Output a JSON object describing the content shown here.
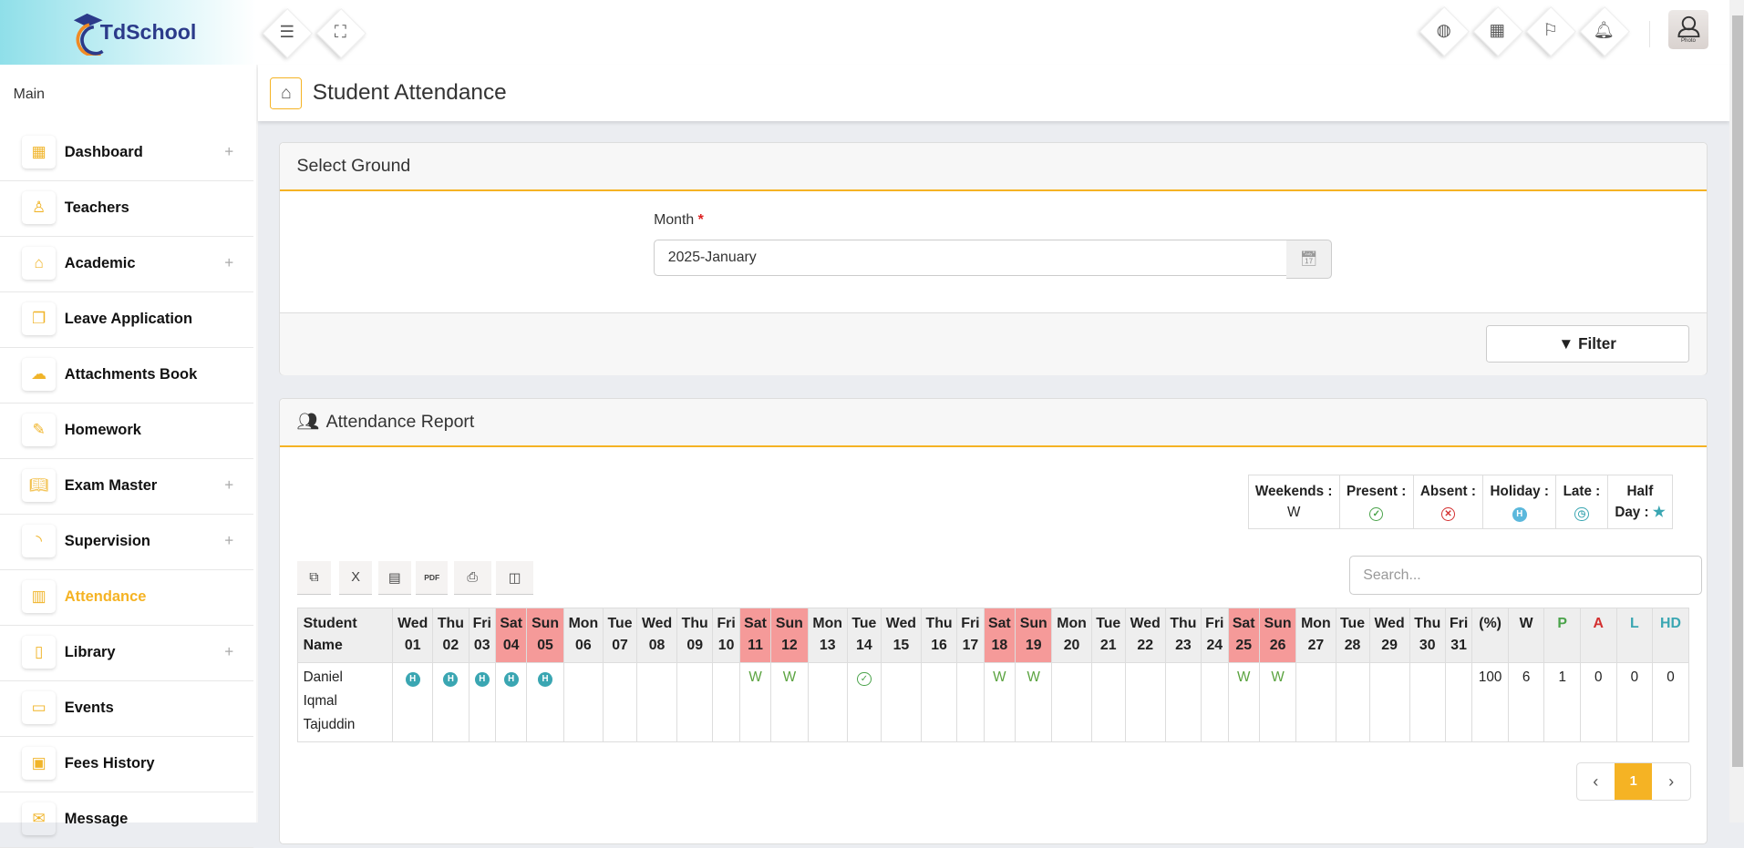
{
  "brand": {
    "name": "TdSchool"
  },
  "topbar": {
    "menu_icon": "menu-icon",
    "fullscreen_icon": "fullscreen-icon",
    "right_icons": [
      "globe-icon",
      "calendar-icon",
      "flag-icon",
      "bell-icon"
    ],
    "avatar_label": "Photo"
  },
  "sidebar": {
    "section": "Main",
    "items": [
      {
        "label": "Dashboard",
        "icon": "grid-icon",
        "expandable": true
      },
      {
        "label": "Teachers",
        "icon": "user-icon",
        "expandable": false
      },
      {
        "label": "Academic",
        "icon": "home-icon",
        "expandable": true
      },
      {
        "label": "Leave Application",
        "icon": "copy-icon",
        "expandable": false
      },
      {
        "label": "Attachments Book",
        "icon": "cloud-upload-icon",
        "expandable": false
      },
      {
        "label": "Homework",
        "icon": "edit-icon",
        "expandable": false
      },
      {
        "label": "Exam Master",
        "icon": "book-icon",
        "expandable": true
      },
      {
        "label": "Supervision",
        "icon": "rss-icon",
        "expandable": true
      },
      {
        "label": "Attendance",
        "icon": "bar-chart-icon",
        "expandable": false,
        "active": true
      },
      {
        "label": "Library",
        "icon": "book-closed-icon",
        "expandable": true
      },
      {
        "label": "Events",
        "icon": "chat-icon",
        "expandable": false
      },
      {
        "label": "Fees History",
        "icon": "calculator-icon",
        "expandable": false
      },
      {
        "label": "Message",
        "icon": "mail-icon",
        "expandable": false
      }
    ]
  },
  "page": {
    "title": "Student Attendance"
  },
  "select_ground": {
    "title": "Select Ground",
    "month_label": "Month",
    "required": "*",
    "month_value": "2025-January",
    "filter_label": "Filter"
  },
  "report": {
    "title": "Attendance Report",
    "legend": {
      "weekends": "Weekends :",
      "weekends_value": "W",
      "present": "Present :",
      "absent": "Absent :",
      "holiday": "Holiday :",
      "late": "Late :",
      "half_day": "Half Day :"
    },
    "toolbar": [
      "copy-icon",
      "excel-icon",
      "csv-icon",
      "pdf-icon",
      "print-icon",
      "columns-icon"
    ],
    "search_placeholder": "Search...",
    "name_header": "Student Name",
    "days": [
      {
        "dow": "Wed",
        "d": "01"
      },
      {
        "dow": "Thu",
        "d": "02"
      },
      {
        "dow": "Fri",
        "d": "03"
      },
      {
        "dow": "Sat",
        "d": "04",
        "weekend": true
      },
      {
        "dow": "Sun",
        "d": "05",
        "weekend": true
      },
      {
        "dow": "Mon",
        "d": "06"
      },
      {
        "dow": "Tue",
        "d": "07"
      },
      {
        "dow": "Wed",
        "d": "08"
      },
      {
        "dow": "Thu",
        "d": "09"
      },
      {
        "dow": "Fri",
        "d": "10"
      },
      {
        "dow": "Sat",
        "d": "11",
        "weekend": true
      },
      {
        "dow": "Sun",
        "d": "12",
        "weekend": true
      },
      {
        "dow": "Mon",
        "d": "13"
      },
      {
        "dow": "Tue",
        "d": "14"
      },
      {
        "dow": "Wed",
        "d": "15"
      },
      {
        "dow": "Thu",
        "d": "16"
      },
      {
        "dow": "Fri",
        "d": "17"
      },
      {
        "dow": "Sat",
        "d": "18",
        "weekend": true
      },
      {
        "dow": "Sun",
        "d": "19",
        "weekend": true
      },
      {
        "dow": "Mon",
        "d": "20"
      },
      {
        "dow": "Tue",
        "d": "21"
      },
      {
        "dow": "Wed",
        "d": "22"
      },
      {
        "dow": "Thu",
        "d": "23"
      },
      {
        "dow": "Fri",
        "d": "24"
      },
      {
        "dow": "Sat",
        "d": "25",
        "weekend": true
      },
      {
        "dow": "Sun",
        "d": "26",
        "weekend": true
      },
      {
        "dow": "Mon",
        "d": "27"
      },
      {
        "dow": "Tue",
        "d": "28"
      },
      {
        "dow": "Wed",
        "d": "29"
      },
      {
        "dow": "Thu",
        "d": "30"
      },
      {
        "dow": "Fri",
        "d": "31"
      }
    ],
    "summary_headers": [
      {
        "label": "(%)",
        "color": "#222222"
      },
      {
        "label": "W",
        "color": "#222222"
      },
      {
        "label": "P",
        "color": "#4aa34a"
      },
      {
        "label": "A",
        "color": "#d32f2f"
      },
      {
        "label": "L",
        "color": "#3aa6b2"
      },
      {
        "label": "HD",
        "color": "#3aa6b2"
      }
    ],
    "rows": [
      {
        "name": "Daniel Iqmal Tajuddin",
        "marks": [
          "H",
          "H",
          "H",
          "H",
          "H",
          "",
          "",
          "",
          "",
          "",
          "W",
          "W",
          "",
          "P",
          "",
          "",
          "",
          "W",
          "W",
          "",
          "",
          "",
          "",
          "",
          "W",
          "W",
          "",
          "",
          "",
          "",
          ""
        ],
        "summary": [
          "100",
          "6",
          "1",
          "0",
          "0",
          "0"
        ]
      }
    ],
    "pagination": {
      "prev": "‹",
      "current": "1",
      "next": "›"
    }
  },
  "colors": {
    "accent": "#f5b324",
    "weekend_header": "#f59a99",
    "holiday": "#3aa6b2",
    "present": "#4aa34a",
    "absent": "#d32f2f"
  }
}
